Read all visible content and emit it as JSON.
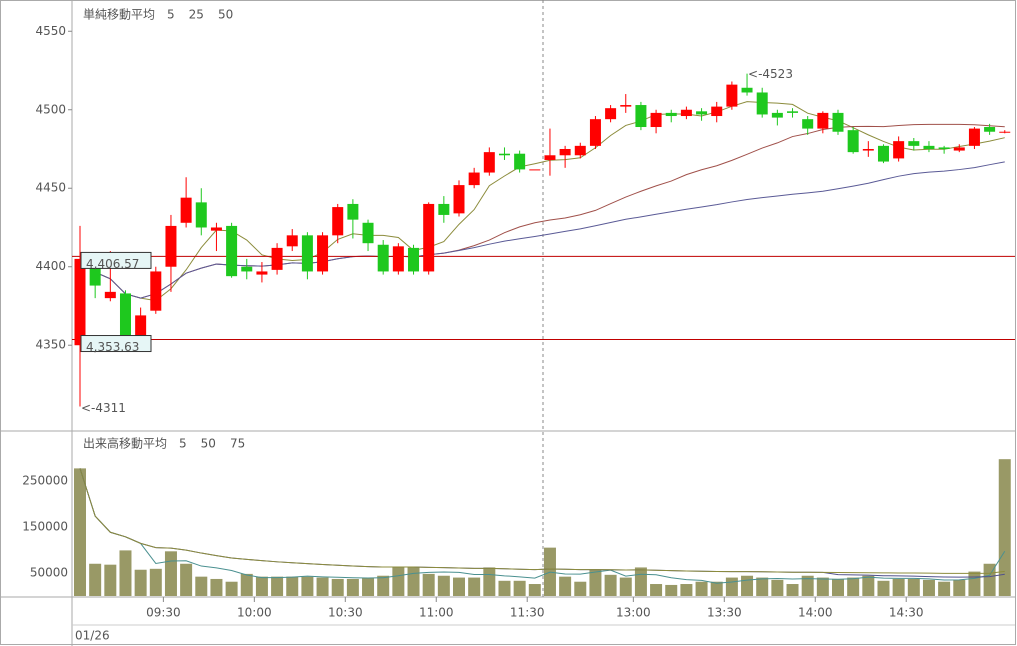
{
  "chart_data": [
    {
      "type": "candlestick",
      "legend_title": "単純移動平均",
      "ma": [
        {
          "name": "5",
          "window": 5,
          "color": "#8c8c3c"
        },
        {
          "name": "25",
          "window": 25,
          "color": "#a0504a"
        },
        {
          "name": "50",
          "window": 50,
          "color": "#5a5a96"
        }
      ],
      "up_color": "#ff0000",
      "down_color": "#1ec81e",
      "open": [
        4350,
        4403,
        4380,
        4383,
        4354,
        4372,
        4400,
        4428,
        4441,
        4423,
        4426,
        4400,
        4395,
        4398,
        4413,
        4420,
        4397,
        4420,
        4440,
        4428,
        4414,
        4397,
        4412,
        4397,
        4440,
        4434,
        4452,
        4460,
        4472,
        4472,
        4462,
        4468,
        4471,
        4471,
        4477,
        4494,
        4502,
        4503,
        4489,
        4498,
        4496,
        4499,
        4496,
        4502,
        4514,
        4511,
        4498,
        4499,
        4494,
        4488,
        4498,
        4487,
        4474,
        4477,
        4469,
        4480,
        4477,
        4476,
        4474,
        4477,
        4489,
        4486
      ],
      "high": [
        4426,
        4406,
        4410,
        4385,
        4374,
        4400,
        4433,
        4457,
        4450,
        4428,
        4428,
        4405,
        4403,
        4415,
        4424,
        4422,
        4422,
        4440,
        4443,
        4430,
        4417,
        4415,
        4414,
        4441,
        4445,
        4455,
        4463,
        4476,
        4476,
        4474,
        4462,
        4488,
        4477,
        4479,
        4496,
        4503,
        4510,
        4505,
        4500,
        4500,
        4502,
        4501,
        4505,
        4518,
        4523,
        4514,
        4500,
        4501,
        4496,
        4499,
        4500,
        4489,
        4480,
        4478,
        4483,
        4482,
        4480,
        4477,
        4478,
        4489,
        4491,
        4487
      ],
      "low": [
        4311,
        4380,
        4378,
        4352,
        4352,
        4370,
        4384,
        4425,
        4420,
        4410,
        4393,
        4392,
        4390,
        4395,
        4410,
        4392,
        4395,
        4415,
        4418,
        4410,
        4395,
        4395,
        4395,
        4395,
        4428,
        4432,
        4450,
        4458,
        4468,
        4460,
        4462,
        4458,
        4463,
        4469,
        4475,
        4492,
        4498,
        4487,
        4485,
        4492,
        4494,
        4493,
        4492,
        4500,
        4509,
        4495,
        4490,
        4495,
        4484,
        4485,
        4484,
        4472,
        4470,
        4466,
        4467,
        4474,
        4473,
        4472,
        4473,
        4475,
        4484,
        4485
      ],
      "close": [
        4405,
        4388,
        4384,
        4354,
        4369,
        4397,
        4426,
        4444,
        4425,
        4425,
        4394,
        4397,
        4397,
        4412,
        4420,
        4397,
        4420,
        4438,
        4430,
        4415,
        4397,
        4413,
        4397,
        4440,
        4433,
        4452,
        4460,
        4473,
        4471,
        4462,
        4462,
        4471,
        4475,
        4477,
        4494,
        4501,
        4503,
        4489,
        4498,
        4496,
        4500,
        4497,
        4502,
        4516,
        4511,
        4497,
        4495,
        4498,
        4488,
        4498,
        4486,
        4473,
        4475,
        4467,
        4480,
        4477,
        4475,
        4475,
        4476,
        4488,
        4486,
        4486
      ],
      "ylim": [
        4296,
        4568
      ],
      "yticks": [
        4550,
        4500,
        4450,
        4400,
        4350
      ],
      "levels": [
        {
          "value": 4406.57,
          "label": "4,406.57"
        },
        {
          "value": 4353.63,
          "label": "4,353.63"
        }
      ],
      "level_color": "#c00000",
      "annotations": [
        {
          "text": "<-4523",
          "value": 4523,
          "color": "#ff0000"
        },
        {
          "text": "<-4311",
          "value": 4311,
          "color": "#1ec81e"
        }
      ]
    },
    {
      "type": "bar",
      "legend_title": "出来高移動平均",
      "ma": [
        {
          "name": "5",
          "window": 5,
          "color": "#4a9090"
        },
        {
          "name": "50",
          "window": 50,
          "color": "#50508c"
        },
        {
          "name": "75",
          "window": 75,
          "color": "#8c8c3c"
        }
      ],
      "color": "#999966",
      "values": [
        277000,
        70000,
        68000,
        99000,
        57000,
        59000,
        97000,
        70000,
        42000,
        37000,
        31000,
        48000,
        42000,
        42000,
        42000,
        42000,
        40000,
        37000,
        37000,
        40000,
        44000,
        62000,
        62000,
        48000,
        44000,
        40000,
        40000,
        62000,
        33000,
        33000,
        26000,
        105000,
        42000,
        31000,
        57000,
        46000,
        40000,
        62000,
        26000,
        24000,
        26000,
        31000,
        31000,
        40000,
        44000,
        40000,
        35000,
        26000,
        44000,
        40000,
        37000,
        40000,
        44000,
        33000,
        37000,
        37000,
        35000,
        31000,
        35000,
        53000,
        70000,
        297000
      ],
      "ylim": [
        0,
        356000
      ],
      "yticks": [
        250000,
        150000,
        50000
      ],
      "xticks": [
        {
          "value": 6,
          "label": "09:30"
        },
        {
          "value": 12,
          "label": "10:00"
        },
        {
          "value": 18,
          "label": "10:30"
        },
        {
          "value": 24,
          "label": "11:00"
        },
        {
          "value": 30,
          "label": "11:30"
        },
        {
          "value": 37,
          "label": "13:00"
        },
        {
          "value": 43,
          "label": "13:30"
        },
        {
          "value": 49,
          "label": "14:00"
        },
        {
          "value": 55,
          "label": "14:30"
        }
      ],
      "date": "01/26"
    }
  ]
}
